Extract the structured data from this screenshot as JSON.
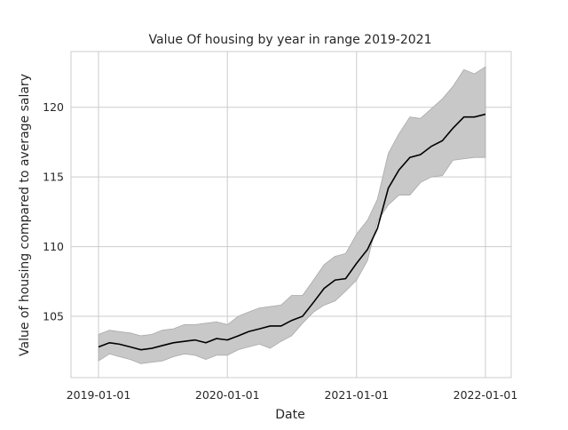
{
  "chart_data": {
    "type": "line",
    "title": "Value Of housing by year in range 2019-2021",
    "xlabel": "Date",
    "ylabel": "Value of housing compared to average salary",
    "x_ticks": [
      "2019-01-01",
      "2020-01-01",
      "2021-01-01",
      "2022-01-01"
    ],
    "y_ticks": [
      "105",
      "110",
      "115",
      "120"
    ],
    "xlim": [
      "2018-10-15",
      "2022-03-15"
    ],
    "ylim": [
      100.6,
      124.0
    ],
    "grid": true,
    "legend": "none",
    "colors": {
      "line": "#000000",
      "band": "#c8c8c8",
      "band_edge": "#a9a9a9",
      "grid": "#cccccc",
      "axis": "#cccccc"
    },
    "series": [
      {
        "x": [
          "2019-01-01",
          "2019-02-01",
          "2019-03-01",
          "2019-04-01",
          "2019-05-01",
          "2019-06-01",
          "2019-07-01",
          "2019-08-01",
          "2019-09-01",
          "2019-10-01",
          "2019-11-01",
          "2019-12-01",
          "2020-01-01",
          "2020-02-01",
          "2020-03-01",
          "2020-04-01",
          "2020-05-01",
          "2020-06-01",
          "2020-07-01",
          "2020-08-01",
          "2020-09-01",
          "2020-10-01",
          "2020-11-01",
          "2020-12-01",
          "2021-01-01",
          "2021-02-01",
          "2021-03-01",
          "2021-04-01",
          "2021-05-01",
          "2021-06-01",
          "2021-07-01",
          "2021-08-01",
          "2021-09-01",
          "2021-10-01",
          "2021-11-01",
          "2021-12-01",
          "2022-01-01"
        ],
        "values": [
          102.8,
          103.1,
          103.0,
          102.8,
          102.6,
          102.7,
          102.9,
          103.1,
          103.2,
          103.3,
          103.1,
          103.4,
          103.3,
          103.6,
          103.9,
          104.1,
          104.3,
          104.3,
          104.7,
          105.0,
          106.0,
          107.0,
          107.6,
          107.7,
          108.8,
          109.8,
          111.3,
          114.2,
          115.5,
          116.4,
          116.6,
          117.2,
          117.6,
          118.5,
          119.3,
          119.3,
          119.5
        ],
        "lower": [
          101.8,
          102.3,
          102.1,
          101.9,
          101.6,
          101.7,
          101.8,
          102.1,
          102.3,
          102.2,
          101.9,
          102.2,
          102.2,
          102.6,
          102.8,
          103.0,
          102.7,
          103.2,
          103.6,
          104.5,
          105.3,
          105.8,
          106.1,
          106.8,
          107.6,
          109.0,
          111.8,
          113.0,
          113.7,
          113.7,
          114.6,
          115.0,
          115.1,
          116.2,
          116.3,
          116.4,
          116.4
        ],
        "upper": [
          103.7,
          104.0,
          103.9,
          103.8,
          103.6,
          103.7,
          104.0,
          104.1,
          104.4,
          104.4,
          104.5,
          104.6,
          104.4,
          105.0,
          105.3,
          105.6,
          105.7,
          105.8,
          106.5,
          106.5,
          107.6,
          108.7,
          109.3,
          109.5,
          110.9,
          111.9,
          113.4,
          116.7,
          118.1,
          119.3,
          119.2,
          119.9,
          120.6,
          121.5,
          122.7,
          122.4,
          122.9
        ]
      }
    ]
  }
}
